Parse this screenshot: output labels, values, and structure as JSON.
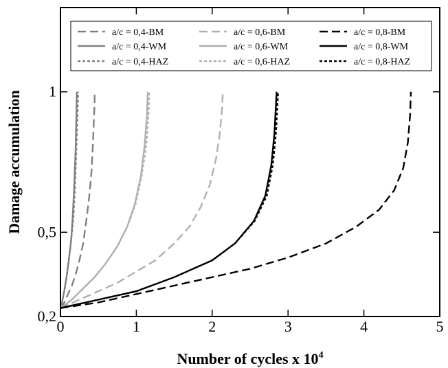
{
  "chart_data": {
    "type": "line",
    "title": "",
    "xlabel": "Number of cycles x 10",
    "xlabel_superscript": "4",
    "ylabel": "Damage accumulation",
    "xlim": [
      0,
      5
    ],
    "ylim": [
      0.2,
      1.3
    ],
    "x_ticks": [
      {
        "value": 0,
        "label": "0"
      },
      {
        "value": 1,
        "label": "1"
      },
      {
        "value": 2,
        "label": "2"
      },
      {
        "value": 3,
        "label": "3"
      },
      {
        "value": 4,
        "label": "4"
      },
      {
        "value": 5,
        "label": "5"
      }
    ],
    "y_ticks": [
      {
        "value": 0.2,
        "label": "0,2"
      },
      {
        "value": 0.5,
        "label": "0,5"
      },
      {
        "value": 1.0,
        "label": "1"
      }
    ],
    "grid": false,
    "legend_position": "top",
    "series": [
      {
        "name": "a/c = 0,4-BM",
        "color": "#808080",
        "dash": "long",
        "x": [
          0,
          0.05,
          0.1,
          0.15,
          0.2,
          0.25,
          0.3,
          0.35,
          0.38,
          0.41,
          0.43,
          0.44,
          0.45,
          0.45
        ],
        "y": [
          0.23,
          0.25,
          0.28,
          0.31,
          0.35,
          0.4,
          0.46,
          0.56,
          0.63,
          0.72,
          0.83,
          0.9,
          0.96,
          1.0
        ]
      },
      {
        "name": "a/c = 0,4-WM",
        "color": "#808080",
        "dash": "solid",
        "x": [
          0,
          0.02,
          0.05,
          0.08,
          0.11,
          0.14,
          0.16,
          0.18,
          0.2,
          0.21,
          0.215
        ],
        "y": [
          0.23,
          0.25,
          0.29,
          0.34,
          0.4,
          0.47,
          0.55,
          0.66,
          0.8,
          0.92,
          1.0
        ]
      },
      {
        "name": "a/c = 0,4-HAZ",
        "color": "#808080",
        "dash": "short",
        "x": [
          0,
          0.02,
          0.05,
          0.08,
          0.11,
          0.14,
          0.17,
          0.19,
          0.21,
          0.225,
          0.235
        ],
        "y": [
          0.23,
          0.25,
          0.29,
          0.34,
          0.4,
          0.47,
          0.55,
          0.65,
          0.8,
          0.92,
          1.0
        ]
      },
      {
        "name": "a/c = 0,6-BM",
        "color": "#b0b0b0",
        "dash": "long",
        "x": [
          0,
          0.25,
          0.5,
          0.75,
          1.0,
          1.25,
          1.5,
          1.7,
          1.85,
          1.97,
          2.05,
          2.1,
          2.13,
          2.14
        ],
        "y": [
          0.23,
          0.26,
          0.29,
          0.32,
          0.36,
          0.4,
          0.46,
          0.52,
          0.59,
          0.67,
          0.76,
          0.85,
          0.94,
          1.0
        ]
      },
      {
        "name": "a/c = 0,6-WM",
        "color": "#b0b0b0",
        "dash": "solid",
        "x": [
          0,
          0.15,
          0.3,
          0.45,
          0.6,
          0.75,
          0.88,
          0.98,
          1.06,
          1.11,
          1.14,
          1.15
        ],
        "y": [
          0.23,
          0.26,
          0.3,
          0.34,
          0.39,
          0.45,
          0.52,
          0.6,
          0.7,
          0.81,
          0.92,
          1.0
        ]
      },
      {
        "name": "a/c = 0,6-HAZ",
        "color": "#b0b0b0",
        "dash": "short",
        "x": [
          0,
          0.15,
          0.3,
          0.45,
          0.6,
          0.75,
          0.88,
          0.99,
          1.07,
          1.13,
          1.16,
          1.17
        ],
        "y": [
          0.23,
          0.26,
          0.3,
          0.34,
          0.39,
          0.45,
          0.52,
          0.6,
          0.7,
          0.81,
          0.92,
          1.0
        ]
      },
      {
        "name": "a/c = 0,8-BM",
        "color": "#000000",
        "dash": "long",
        "x": [
          0,
          0.5,
          1.0,
          1.5,
          2.0,
          2.5,
          3.0,
          3.5,
          3.9,
          4.2,
          4.4,
          4.52,
          4.58,
          4.61,
          4.62
        ],
        "y": [
          0.23,
          0.25,
          0.28,
          0.31,
          0.34,
          0.37,
          0.41,
          0.46,
          0.52,
          0.58,
          0.65,
          0.73,
          0.82,
          0.92,
          1.0
        ]
      },
      {
        "name": "a/c = 0,8-WM",
        "color": "#000000",
        "dash": "solid",
        "x": [
          0,
          0.5,
          1.0,
          1.5,
          2.0,
          2.3,
          2.55,
          2.7,
          2.78,
          2.82,
          2.84,
          2.85
        ],
        "y": [
          0.23,
          0.26,
          0.29,
          0.34,
          0.4,
          0.46,
          0.54,
          0.63,
          0.74,
          0.85,
          0.95,
          1.0
        ]
      },
      {
        "name": "a/c = 0,8-HAZ",
        "color": "#000000",
        "dash": "short",
        "x": [
          0,
          0.5,
          1.0,
          1.5,
          2.0,
          2.3,
          2.56,
          2.72,
          2.8,
          2.84,
          2.86,
          2.87
        ],
        "y": [
          0.23,
          0.26,
          0.29,
          0.34,
          0.4,
          0.46,
          0.54,
          0.63,
          0.74,
          0.85,
          0.95,
          1.0
        ]
      }
    ]
  }
}
